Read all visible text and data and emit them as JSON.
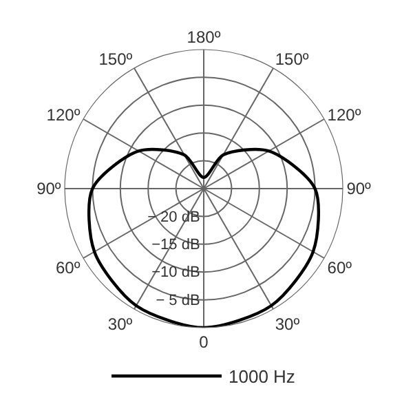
{
  "chart_data": {
    "type": "radar",
    "categories": [
      "180º",
      "150º",
      "120º",
      "90º",
      "60º",
      "30º",
      "0",
      "30º",
      "60º",
      "90º",
      "120º",
      "150º"
    ],
    "series": [
      {
        "name": "1000 Hz",
        "color": "#000000",
        "values": [
          -23,
          -18,
          -11.5,
          -5,
          -2.3,
          -0.7,
          0,
          -0.7,
          -2.3,
          -5,
          -11.5,
          -18
        ]
      }
    ],
    "ylim": [
      -25,
      0
    ],
    "yticks": [
      {
        "value": -20,
        "label": "− 20 dB"
      },
      {
        "value": -15,
        "label": "−15 dB"
      },
      {
        "value": -10,
        "label": "−10 dB"
      },
      {
        "value": -5,
        "label": "− 5 dB"
      }
    ],
    "grid": true,
    "legend": "bottom",
    "line_style": "solid"
  }
}
